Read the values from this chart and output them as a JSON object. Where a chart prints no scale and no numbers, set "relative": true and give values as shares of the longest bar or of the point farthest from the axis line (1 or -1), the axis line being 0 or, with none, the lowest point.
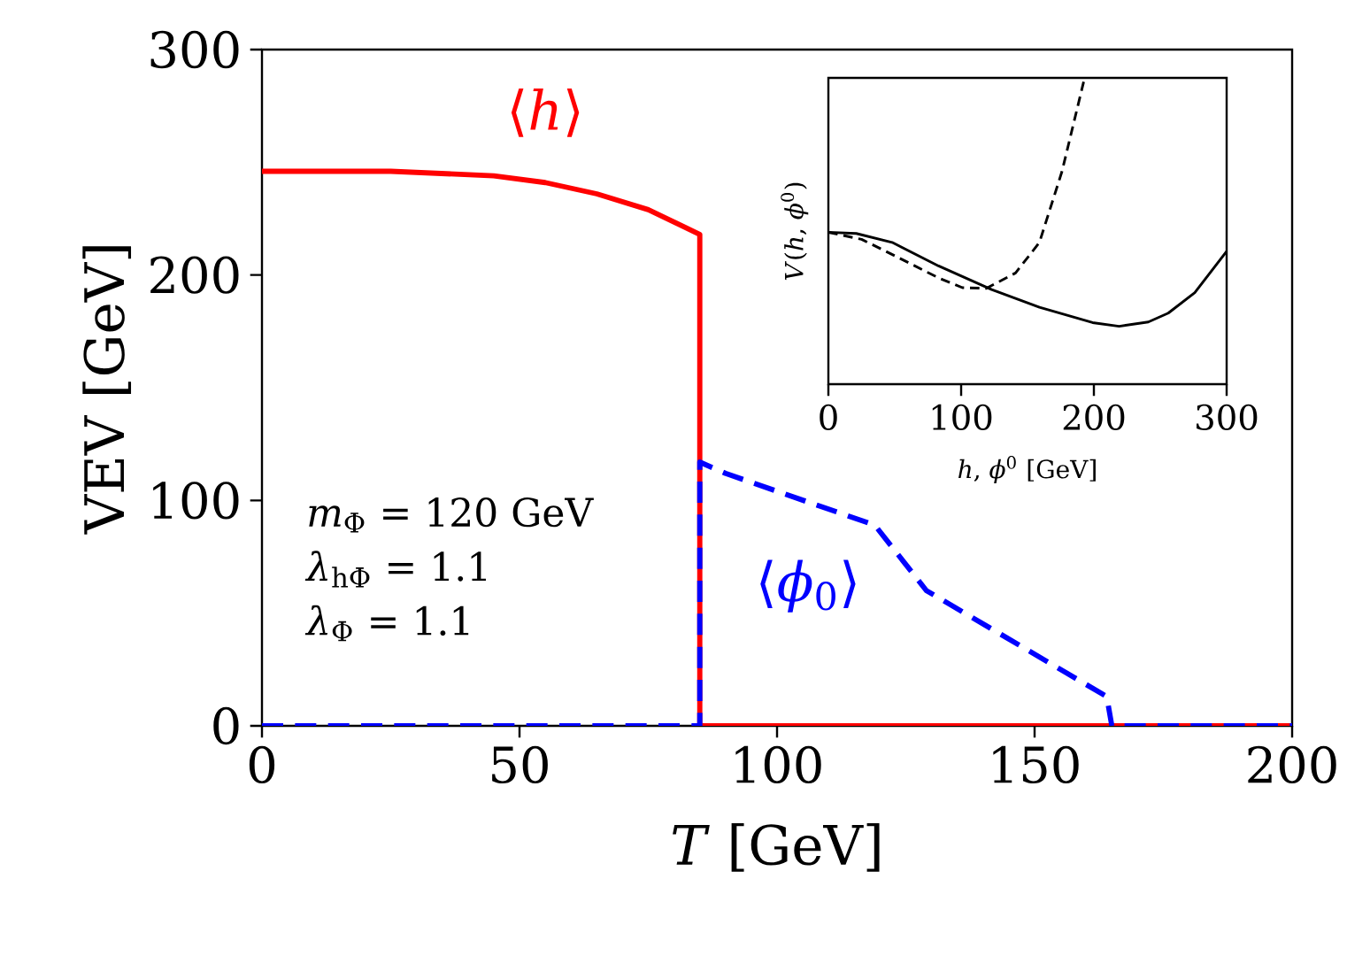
{
  "chart_data": [
    {
      "type": "line",
      "xlabel": "*T* [GeV]",
      "ylabel": "VEV [GeV]",
      "xlim": [
        0,
        200
      ],
      "ylim": [
        0,
        300
      ],
      "xticks": [
        0,
        50,
        100,
        150,
        200
      ],
      "yticks": [
        0,
        100,
        200,
        300
      ],
      "grid": false,
      "legend": false,
      "series": [
        {
          "name": "⟨*h*⟩",
          "color": "#ff0000",
          "line_style": "solid",
          "x": [
            0,
            25,
            45,
            55,
            65,
            75,
            85,
            85,
            200
          ],
          "values": [
            246,
            246,
            244,
            241,
            236,
            229,
            218,
            0,
            0
          ]
        },
        {
          "name": "⟨*ϕ*$_{0}$⟩",
          "color": "#0000ff",
          "line_style": "dashed",
          "x": [
            0,
            85,
            85,
            90,
            119,
            129,
            164,
            165,
            200
          ],
          "values": [
            0,
            0,
            117,
            112,
            89,
            60,
            13,
            0,
            0
          ]
        }
      ],
      "annotations": [
        "*m*$_{Φ}$ = 120 GeV",
        "*λ*$_{hΦ}$ = 1.1",
        "*λ*$_{Φ}$ = 1.1"
      ]
    },
    {
      "type": "line",
      "xlabel": "*h*, *ϕ*$^{0}$ [GeV]",
      "ylabel": "*V*(*h*, *ϕ*$^{0}$)",
      "xlim": [
        0,
        300
      ],
      "xticks": [
        0,
        100,
        200,
        300
      ],
      "relative": true,
      "tick_labels": "x",
      "series": [
        {
          "color": "#000000",
          "line_style": "solid",
          "x": [
            0,
            21,
            48,
            83,
            123,
            159,
            199,
            219,
            241,
            256,
            276,
            300
          ],
          "values": [
            0.496,
            0.492,
            0.463,
            0.386,
            0.309,
            0.251,
            0.201,
            0.189,
            0.203,
            0.232,
            0.299,
            0.434
          ]
        },
        {
          "color": "#000000",
          "line_style": "dashed",
          "x": [
            0,
            25,
            52,
            83,
            101,
            119,
            141,
            159,
            176,
            193
          ],
          "values": [
            0.496,
            0.473,
            0.415,
            0.347,
            0.315,
            0.313,
            0.363,
            0.463,
            0.695,
            1.0
          ]
        }
      ]
    }
  ]
}
